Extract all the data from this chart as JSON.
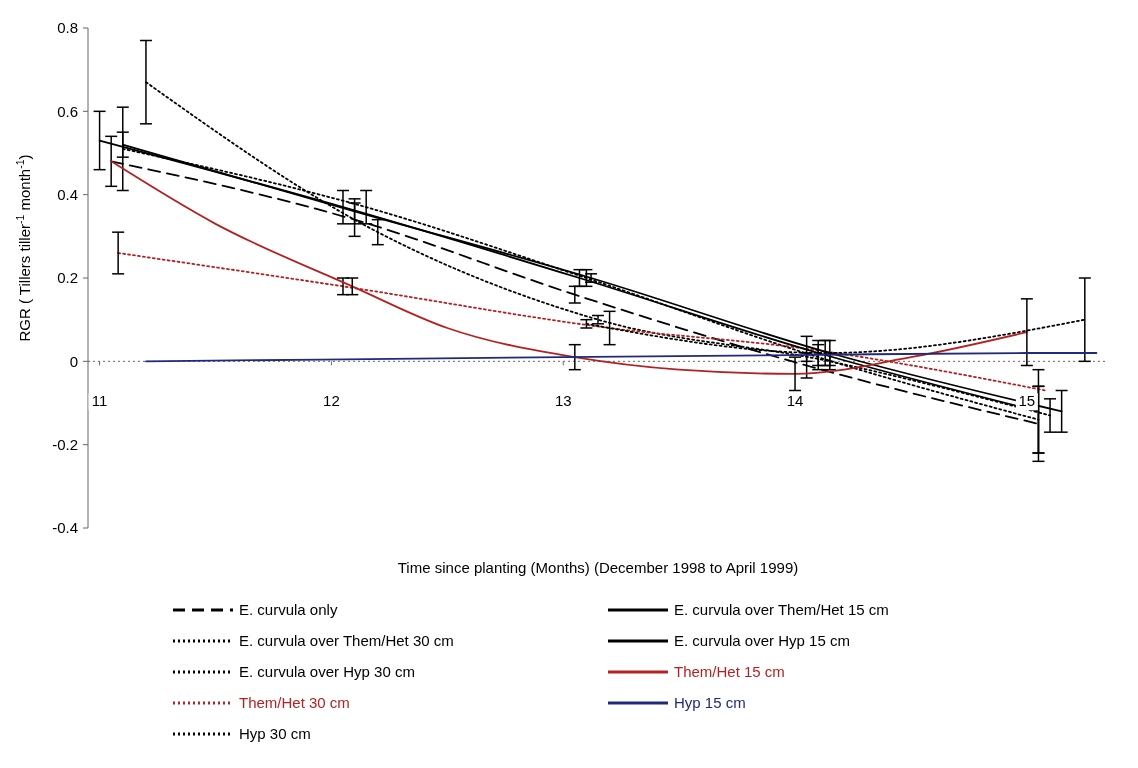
{
  "chart_data": {
    "type": "line",
    "xlabel": "Time since planting (Months) (December 1998 to April 1999)",
    "ylabel": "RGR ( Tillers tiller$^{-1}$ month$^{-1}$)",
    "xlim": [
      10.95,
      15.35
    ],
    "xticks": [
      11,
      12,
      13,
      14,
      15
    ],
    "ylim": [
      -0.4,
      0.8
    ],
    "yticks": [
      -0.4,
      -0.2,
      0,
      0.2,
      0.4,
      0.6,
      0.8
    ],
    "legend": "bottom",
    "series": [
      {
        "name": "E. curvula only",
        "color": "#000000",
        "line_style": "dashed",
        "x": [
          11.05,
          12.1,
          13.05,
          14.05,
          15.05
        ],
        "values": [
          0.48,
          0.34,
          0.16,
          -0.01,
          -0.15
        ],
        "errors": [
          0.06,
          0.04,
          0.02,
          0.03,
          0.09
        ]
      },
      {
        "name": "E. curvula over Them/Het 30 cm",
        "color": "#000000",
        "line_style": "dotted",
        "x": [
          11.1,
          12.15,
          13.1,
          14.1,
          15.05
        ],
        "values": [
          0.51,
          0.37,
          0.2,
          0.01,
          -0.14
        ],
        "errors": [
          0.1,
          0.04,
          0.02,
          0.03,
          0.08
        ]
      },
      {
        "name": "E. curvula over Hyp 30 cm",
        "color": "#000000",
        "line_style": "dotted",
        "x": [
          11.2,
          12.2,
          13.15,
          14.15,
          15.1
        ],
        "values": [
          0.67,
          0.31,
          0.1,
          0.0,
          -0.13
        ],
        "errors": [
          0.1,
          0.03,
          0.01,
          0.02,
          0.04
        ]
      },
      {
        "name": "Them/Het 30 cm",
        "color": "#b22222",
        "line_style": "dotted",
        "x": [
          11.08,
          12.05,
          13.2,
          14.05,
          15.08
        ],
        "values": [
          0.26,
          0.18,
          0.08,
          0.03,
          -0.07
        ],
        "errors": [
          0.05,
          0.02,
          0.04,
          0.03,
          null
        ]
      },
      {
        "name": "Hyp 30 cm",
        "color": "#000000",
        "line_style": "dotted",
        "x": [
          13.1,
          14.13,
          15.25
        ],
        "values": [
          0.09,
          0.02,
          0.1
        ],
        "errors": [
          0.01,
          0.03,
          0.1
        ]
      },
      {
        "name": "E. curvula over Them/Het 15 cm",
        "color": "#000000",
        "line_style": "solid",
        "x": [
          11.0,
          12.05,
          13.07,
          14.1,
          15.05
        ],
        "values": [
          0.53,
          0.37,
          0.2,
          0.02,
          -0.12
        ],
        "errors": [
          0.07,
          0.04,
          0.02,
          0.03,
          0.1
        ]
      },
      {
        "name": "E. curvula over Hyp 15 cm",
        "color": "#000000",
        "line_style": "solid",
        "x": [
          11.1,
          12.1,
          13.12,
          14.15,
          15.15
        ],
        "values": [
          0.52,
          0.36,
          0.2,
          0.02,
          -0.12
        ],
        "errors": [
          0.03,
          0.03,
          0.01,
          0.03,
          0.05
        ]
      },
      {
        "name": "Them/Het 15 cm",
        "color": "#b22222",
        "line_style": "solid",
        "x": [
          11.05,
          11.5,
          12.09,
          12.5,
          13.05,
          13.5,
          14.0,
          14.5,
          15.0
        ],
        "values": [
          0.48,
          0.33,
          0.18,
          0.08,
          0.01,
          -0.02,
          -0.03,
          0.01,
          0.07
        ],
        "errors": [
          null,
          null,
          0.02,
          null,
          0.03,
          null,
          0.04,
          null,
          0.08
        ]
      },
      {
        "name": "Hyp 15 cm",
        "color": "#1f2a7a",
        "line_style": "solid",
        "x": [
          11.2,
          13.0,
          14.0,
          15.0,
          15.3
        ],
        "values": [
          0.0,
          0.01,
          0.015,
          0.02,
          0.02
        ]
      }
    ]
  }
}
